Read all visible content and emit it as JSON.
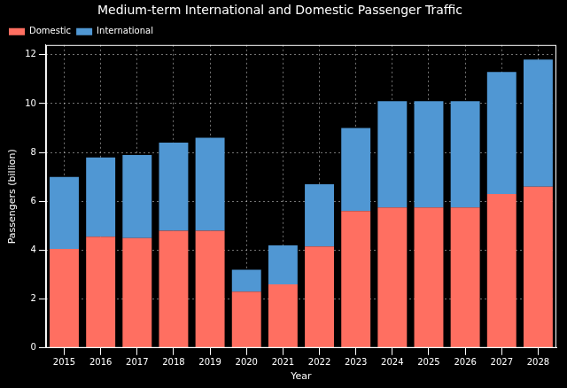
{
  "chart_data": {
    "type": "bar",
    "title": "Medium-term International and Domestic Passenger Traffic",
    "x_label": "Year",
    "y_label": "Passengers (billion)",
    "categories": [
      "2015",
      "2016",
      "2017",
      "2018",
      "2019",
      "2020",
      "2021",
      "2022",
      "2023",
      "2024",
      "2025",
      "2026",
      "2027",
      "2028"
    ],
    "series": [
      {
        "name": "Domestic",
        "color": "#ff6f61",
        "values": [
          4.05,
          4.55,
          4.5,
          4.8,
          4.8,
          2.3,
          2.6,
          4.15,
          5.6,
          5.75,
          5.75,
          5.75,
          6.3,
          6.6
        ]
      },
      {
        "name": "International",
        "color": "#5097d3",
        "values": [
          2.95,
          3.25,
          3.4,
          3.6,
          3.8,
          0.9,
          1.6,
          2.55,
          3.4,
          4.35,
          4.35,
          4.35,
          5.0,
          5.2
        ]
      }
    ],
    "stacked": true,
    "ylim": [
      0,
      12.4
    ],
    "yticks": [
      0,
      2,
      4,
      6,
      8,
      10,
      12
    ],
    "grid": true,
    "legend": "upper left"
  }
}
